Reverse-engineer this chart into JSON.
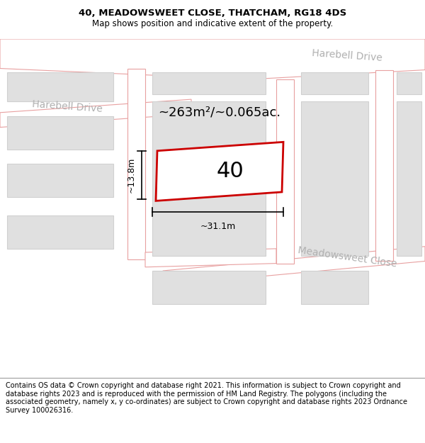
{
  "title": "40, MEADOWSWEET CLOSE, THATCHAM, RG18 4DS",
  "subtitle": "Map shows position and indicative extent of the property.",
  "footer": "Contains OS data © Crown copyright and database right 2021. This information is subject to Crown copyright and database rights 2023 and is reproduced with the permission of HM Land Registry. The polygons (including the associated geometry, namely x, y co-ordinates) are subject to Crown copyright and database rights 2023 Ordnance Survey 100026316.",
  "map_bg": "#ffffff",
  "road_fill": "#ffffff",
  "road_stroke": "#e8a0a0",
  "building_fill": "#e0e0e0",
  "building_stroke": "#d0d0d0",
  "subject_stroke": "#cc0000",
  "subject_fill": "#ffffff",
  "subject_label": "40",
  "area_text": "~263m²/~0.065ac.",
  "dim_width": "~31.1m",
  "dim_height": "~13.8m",
  "street_label_1": "Harebell Drive",
  "street_label_2": "Harebell Drive",
  "street_label_3": "Meadowsweet Close",
  "title_fontsize": 9.5,
  "subtitle_fontsize": 8.5,
  "footer_fontsize": 7.0
}
